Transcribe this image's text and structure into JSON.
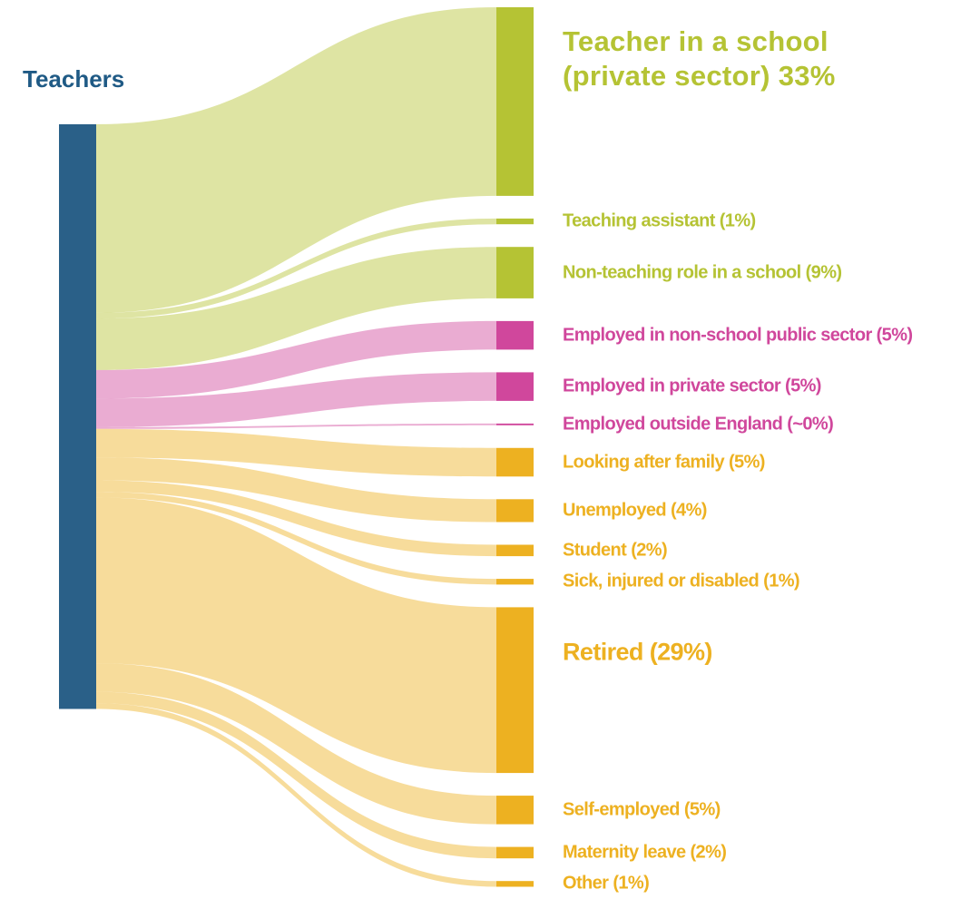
{
  "chart_data": {
    "type": "sankey",
    "source": "Teachers",
    "source_color": "#2a6088",
    "categories": [
      "Teacher in a school (private sector)",
      "Teaching assistant",
      "Non-teaching role in a school",
      "Employed in non-school public sector",
      "Employed in private sector",
      "Employed outside England",
      "Looking after family",
      "Unemployed",
      "Student",
      "Sick, injured or disabled",
      "Retired",
      "Self-employed",
      "Maternity leave",
      "Other"
    ],
    "values": [
      33,
      1,
      9,
      5,
      5,
      0.3,
      5,
      4,
      2,
      1,
      29,
      5,
      2,
      1
    ],
    "value_labels": [
      "33%",
      "(1%)",
      "(9%)",
      "(5%)",
      "(5%)",
      "(~0%)",
      "(5%)",
      "(4%)",
      "(2%)",
      "(1%)",
      "(29%)",
      "(5%)",
      "(2%)",
      "(1%)"
    ],
    "colors": [
      "#b5c334",
      "#b5c334",
      "#b5c334",
      "#d0479c",
      "#d0479c",
      "#d0479c",
      "#edb121",
      "#edb121",
      "#edb121",
      "#edb121",
      "#edb121",
      "#edb121",
      "#edb121",
      "#edb121"
    ]
  }
}
